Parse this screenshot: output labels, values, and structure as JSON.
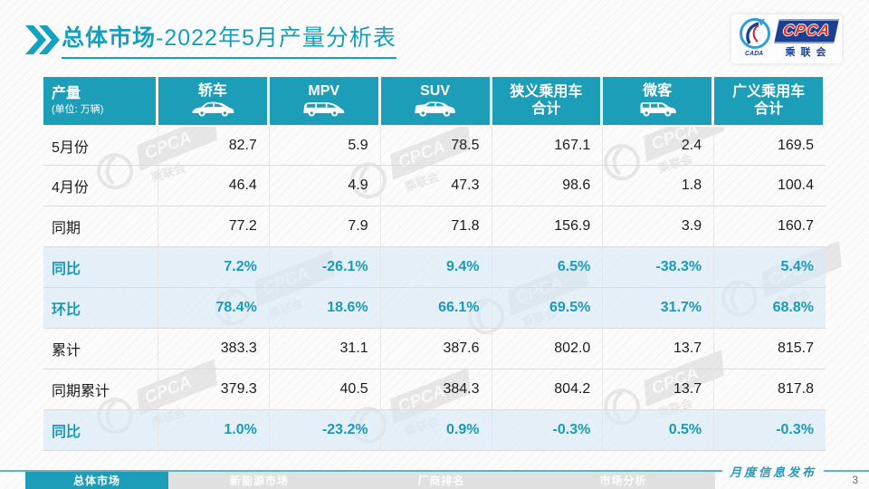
{
  "title": {
    "section": "总体市场",
    "rest": "-2022年5月产量分析表"
  },
  "logo": {
    "cpca": "CPCA",
    "cn": "乘联会",
    "emblem_sub": "CADA"
  },
  "watermark": {
    "cpca": "CPCA",
    "cn": "乘联会"
  },
  "colors": {
    "teal": "#1d9eb8",
    "title_teal": "#139fbd",
    "highlight_row": "#d8e9f5",
    "logo_blue": "#1c3f8f",
    "logo_red": "#d5352c",
    "footer_line": "#58b7c9"
  },
  "table": {
    "corner": {
      "label": "产量",
      "unit": "(单位: 万辆)"
    },
    "columns": [
      {
        "label": "轿车",
        "label2": "",
        "icon": "sedan-icon"
      },
      {
        "label": "MPV",
        "label2": "",
        "icon": "mpv-icon"
      },
      {
        "label": "SUV",
        "label2": "",
        "icon": "suv-icon"
      },
      {
        "label": "狭义乘用车",
        "label2": "合计",
        "icon": ""
      },
      {
        "label": "微客",
        "label2": "",
        "icon": "microvan-icon"
      },
      {
        "label": "广义乘用车",
        "label2": "合计",
        "icon": ""
      }
    ],
    "rows": [
      {
        "label": "5月份",
        "highlight": false,
        "values": [
          "82.7",
          "5.9",
          "78.5",
          "167.1",
          "2.4",
          "169.5"
        ]
      },
      {
        "label": "4月份",
        "highlight": false,
        "values": [
          "46.4",
          "4.9",
          "47.3",
          "98.6",
          "1.8",
          "100.4"
        ]
      },
      {
        "label": "同期",
        "highlight": false,
        "values": [
          "77.2",
          "7.9",
          "71.8",
          "156.9",
          "3.9",
          "160.7"
        ]
      },
      {
        "label": "同比",
        "highlight": true,
        "values": [
          "7.2%",
          "-26.1%",
          "9.4%",
          "6.5%",
          "-38.3%",
          "5.4%"
        ]
      },
      {
        "label": "环比",
        "highlight": true,
        "values": [
          "78.4%",
          "18.6%",
          "66.1%",
          "69.5%",
          "31.7%",
          "68.8%"
        ]
      },
      {
        "label": "累计",
        "highlight": false,
        "values": [
          "383.3",
          "31.1",
          "387.6",
          "802.0",
          "13.7",
          "815.7"
        ]
      },
      {
        "label": "同期累计",
        "highlight": false,
        "values": [
          "379.3",
          "40.5",
          "384.3",
          "804.2",
          "13.7",
          "817.8"
        ]
      },
      {
        "label": "同比",
        "highlight": true,
        "values": [
          "1.0%",
          "-23.2%",
          "0.9%",
          "-0.3%",
          "0.5%",
          "-0.3%"
        ]
      }
    ]
  },
  "footer": {
    "tabs": [
      {
        "label": "总体市场",
        "active": true
      },
      {
        "label": "新能源市场",
        "active": false
      },
      {
        "label": "厂商排名",
        "active": false
      },
      {
        "label": "市场分析",
        "active": false
      }
    ],
    "release_label": "月度信息发布",
    "page_number": "3"
  }
}
